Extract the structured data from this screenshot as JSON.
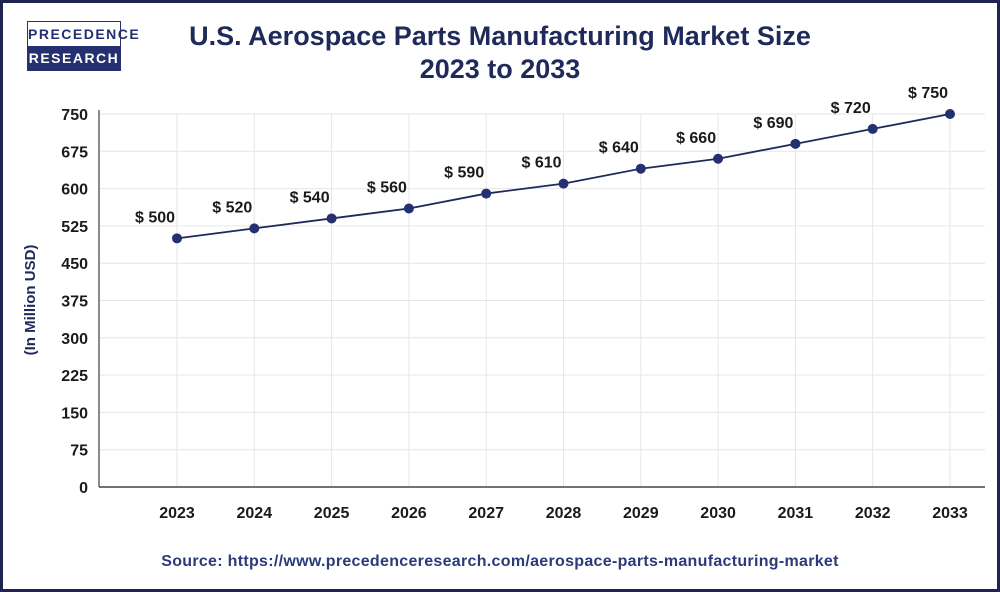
{
  "logo": {
    "line1": "PRECEDENCE",
    "line2": "RESEARCH"
  },
  "source": "Source: https://www.precedenceresearch.com/aerospace-parts-manufacturing-market",
  "colors": {
    "line": "#1f2a5a",
    "marker": "#243070",
    "border": "#1f2350"
  },
  "chart_data": {
    "type": "line",
    "title": "U.S. Aerospace Parts Manufacturing Market Size",
    "subtitle": "2023 to 2033",
    "xlabel": "",
    "ylabel": "(In Million USD)",
    "categories": [
      "2023",
      "2024",
      "2025",
      "2026",
      "2027",
      "2028",
      "2029",
      "2030",
      "2031",
      "2032",
      "2033"
    ],
    "values": [
      500,
      520,
      540,
      560,
      590,
      610,
      640,
      660,
      690,
      720,
      750
    ],
    "data_labels": [
      "$ 500",
      "$ 520",
      "$ 540",
      "$ 560",
      "$ 590",
      "$ 610",
      "$ 640",
      "$ 660",
      "$ 690",
      "$ 720",
      "$ 750"
    ],
    "yticks": [
      0,
      75,
      150,
      225,
      300,
      375,
      450,
      525,
      600,
      675,
      750
    ],
    "ylim": [
      0,
      750
    ],
    "grid": true,
    "legend": "none"
  }
}
